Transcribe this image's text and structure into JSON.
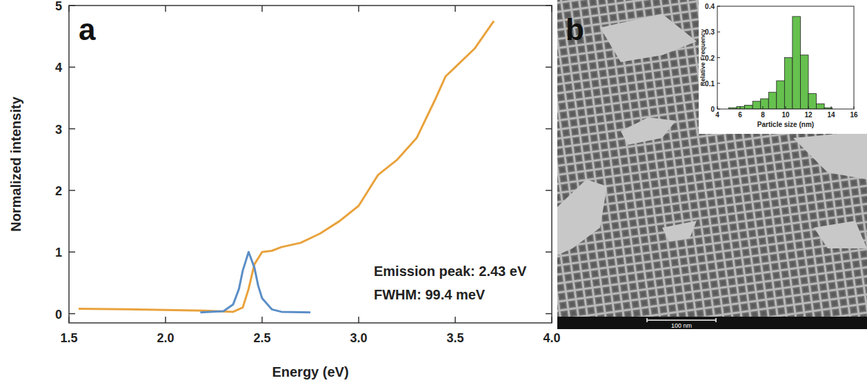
{
  "chart_data": [
    {
      "type": "line",
      "panel": "a",
      "x_label": "Energy (eV)",
      "y_label": "Normalized intensity",
      "xlim": [
        1.5,
        4.0
      ],
      "xticks": [
        1.5,
        {
          "value": 2,
          "label": "2.0"
        },
        2.5,
        {
          "value": 3,
          "label": "3.0"
        },
        3.5,
        {
          "value": 4,
          "label": "4.0"
        }
      ],
      "ylim": [
        -0.15,
        5
      ],
      "yticks": [
        0,
        1,
        2,
        3,
        4,
        5
      ],
      "annotations": [
        "Emission peak: 2.43 eV",
        "FWHM: 99.4 meV"
      ],
      "series": [
        {
          "color": "#e9a23b",
          "x": [
            1.55,
            1.8,
            2.0,
            2.2,
            2.35,
            2.4,
            2.43,
            2.46,
            2.5,
            2.55,
            2.6,
            2.7,
            2.8,
            2.9,
            3.0,
            3.05,
            3.1,
            3.2,
            3.3,
            3.4,
            3.45,
            3.5,
            3.6,
            3.7
          ],
          "values": [
            0.08,
            0.07,
            0.06,
            0.05,
            0.03,
            0.1,
            0.4,
            0.8,
            1.0,
            1.02,
            1.08,
            1.15,
            1.3,
            1.5,
            1.75,
            2.0,
            2.25,
            2.5,
            2.85,
            3.5,
            3.85,
            4.0,
            4.3,
            4.75
          ]
        },
        {
          "color": "#5b8ec7",
          "x": [
            2.18,
            2.3,
            2.35,
            2.38,
            2.4,
            2.43,
            2.46,
            2.48,
            2.5,
            2.55,
            2.6,
            2.75
          ],
          "values": [
            0.02,
            0.04,
            0.15,
            0.4,
            0.7,
            1.0,
            0.75,
            0.45,
            0.25,
            0.07,
            0.03,
            0.02
          ]
        }
      ]
    },
    {
      "type": "image",
      "panel": "b",
      "annotations": [
        "100 nm"
      ]
    },
    {
      "type": "histogram",
      "x_label": "Particle size (nm)",
      "y_label": "Relative Frequency",
      "color": "#66c04e",
      "bins": [
        5.0,
        5.7,
        6.4,
        7.1,
        7.8,
        8.5,
        9.2,
        9.9,
        10.6,
        11.3,
        12.0,
        12.7,
        13.4,
        14.1
      ],
      "values": [
        0.005,
        0.01,
        0.015,
        0.03,
        0.04,
        0.065,
        0.11,
        0.2,
        0.36,
        0.21,
        0.06,
        0.02,
        0.005
      ],
      "xlim": [
        4,
        16
      ],
      "xticks": [
        4,
        6,
        8,
        10,
        12,
        14,
        16
      ],
      "ylim": [
        0,
        0.4
      ],
      "yticks": [
        0,
        0.1,
        0.2,
        0.3,
        0.4
      ]
    }
  ]
}
